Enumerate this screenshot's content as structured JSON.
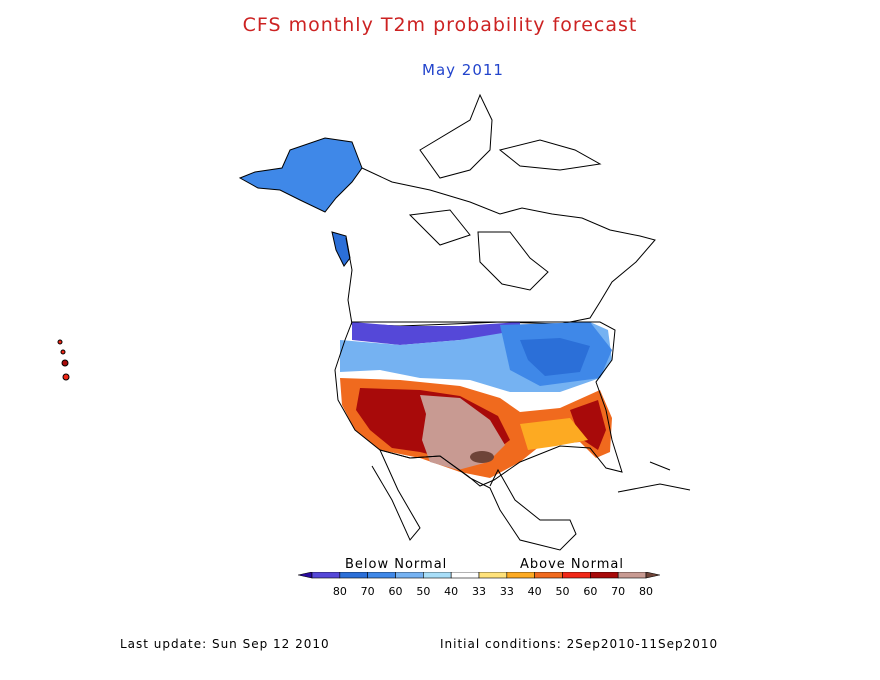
{
  "title": "CFS monthly T2m probability forecast",
  "subtitle": "May 2011",
  "legend": {
    "below_label": "Below Normal",
    "above_label": "Above Normal",
    "ticks": [
      "80",
      "70",
      "60",
      "50",
      "40",
      "33",
      "33",
      "40",
      "50",
      "60",
      "70",
      "80"
    ],
    "colors": [
      "#2a0a9e",
      "#5548d8",
      "#2b6fd8",
      "#3f88e8",
      "#75b2f2",
      "#a8def8",
      "#ffffff",
      "#ffe27a",
      "#fdaa22",
      "#f06a1e",
      "#f02818",
      "#a80a0a",
      "#c89a92",
      "#6e4438"
    ]
  },
  "footer": {
    "last_update": "Last update: Sun Sep 12 2010",
    "initial_conditions": "Initial conditions: 2Sep2010-11Sep2010"
  }
}
